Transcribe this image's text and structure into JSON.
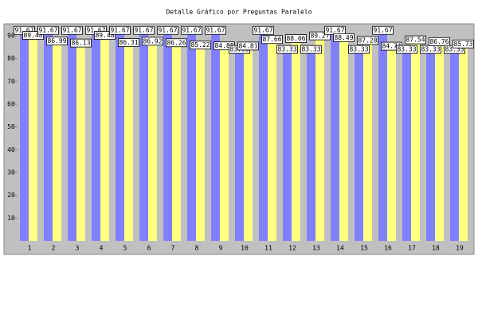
{
  "chart_data": {
    "type": "bar",
    "title": "Detalle Gráfico por Preguntas Paralelo",
    "categories": [
      "1",
      "2",
      "3",
      "4",
      "5",
      "6",
      "7",
      "8",
      "9",
      "10",
      "11",
      "12",
      "13",
      "14",
      "15",
      "16",
      "17",
      "18",
      "19"
    ],
    "series": [
      {
        "color": "#8080ff",
        "values": [
          91.67,
          91.67,
          91.67,
          91.67,
          91.67,
          91.67,
          91.67,
          91.67,
          91.67,
          83.33,
          91.67,
          83.33,
          83.33,
          91.67,
          83.33,
          91.67,
          83.33,
          83.33,
          83.33
        ]
      },
      {
        "color": "#ffff80",
        "values": [
          89.48,
          86.99,
          86.13,
          89.48,
          86.31,
          86.92,
          86.26,
          85.22,
          84.88,
          84.81,
          87.66,
          88.06,
          89.27,
          88.49,
          87.28,
          84.74,
          87.54,
          86.76,
          85.73
        ]
      }
    ],
    "ylim": [
      0,
      93.5
    ],
    "yticks": [
      10,
      20,
      30,
      40,
      50,
      60,
      70,
      80,
      90
    ],
    "grid": false
  }
}
